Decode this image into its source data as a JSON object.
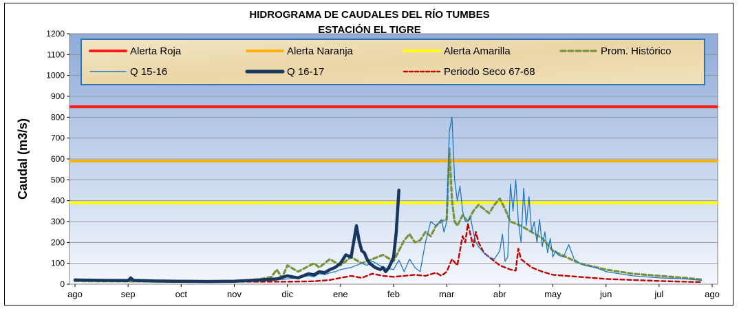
{
  "chart_data": {
    "type": "line",
    "title": "HIDROGRAMA DE CAUDALES  DEL RÍO TUMBES",
    "subtitle": "ESTACIÓN EL TIGRE",
    "ylabel": "Caudal (m3/s)",
    "xlabel": "",
    "ylim": [
      0,
      1200
    ],
    "yticks": [
      0,
      100,
      200,
      300,
      400,
      500,
      600,
      700,
      800,
      900,
      1000,
      1100,
      1200
    ],
    "xlim": [
      0,
      12
    ],
    "months": [
      "ago",
      "sep",
      "oct",
      "nov",
      "dic",
      "ene",
      "feb",
      "mar",
      "abr",
      "may",
      "jun",
      "jul",
      "ago"
    ],
    "grid": true,
    "legend_position": "top",
    "thresholds": [
      {
        "name": "Alerta Roja",
        "value": 850,
        "color": "#ff1a1a"
      },
      {
        "name": "Alerta Naranja",
        "value": 590,
        "color": "#ffb300"
      },
      {
        "name": "Alerta Amarilla",
        "value": 390,
        "color": "#ffff00"
      }
    ],
    "series": [
      {
        "name": "Prom. Histórico",
        "color": "#77933c",
        "style": "dashed",
        "x": [
          0,
          0.5,
          1,
          1.5,
          2,
          2.5,
          3,
          3.3,
          3.5,
          3.7,
          3.8,
          3.9,
          4.0,
          4.2,
          4.5,
          4.6,
          4.8,
          5.0,
          5.2,
          5.4,
          5.6,
          5.8,
          6.0,
          6.2,
          6.3,
          6.4,
          6.5,
          6.6,
          6.7,
          6.8,
          6.9,
          7.0,
          7.05,
          7.1,
          7.15,
          7.2,
          7.3,
          7.4,
          7.5,
          7.6,
          7.7,
          7.8,
          7.9,
          8.0,
          8.1,
          8.2,
          8.4,
          8.6,
          8.8,
          9.0,
          9.5,
          10,
          10.5,
          11,
          11.5,
          11.8
        ],
        "y": [
          15,
          14,
          14,
          13,
          13,
          12,
          14,
          20,
          25,
          35,
          70,
          30,
          90,
          60,
          100,
          80,
          120,
          90,
          130,
          100,
          120,
          140,
          110,
          210,
          240,
          200,
          210,
          250,
          230,
          280,
          300,
          310,
          650,
          400,
          300,
          280,
          330,
          300,
          350,
          380,
          360,
          340,
          380,
          410,
          360,
          300,
          280,
          250,
          220,
          160,
          100,
          70,
          50,
          40,
          30,
          22
        ]
      },
      {
        "name": "Q 15-16",
        "color": "#1f77c4",
        "style": "thin",
        "x": [
          0,
          1,
          2,
          3,
          3.5,
          3.8,
          4.0,
          4.2,
          4.4,
          4.5,
          4.6,
          4.7,
          4.8,
          4.9,
          5.0,
          5.2,
          5.4,
          5.5,
          5.6,
          5.8,
          6.0,
          6.1,
          6.2,
          6.3,
          6.4,
          6.5,
          6.6,
          6.7,
          6.8,
          6.9,
          6.95,
          7.0,
          7.05,
          7.1,
          7.15,
          7.2,
          7.25,
          7.3,
          7.35,
          7.4,
          7.45,
          7.5,
          7.55,
          7.6,
          7.7,
          7.8,
          7.9,
          8.0,
          8.05,
          8.1,
          8.15,
          8.2,
          8.25,
          8.3,
          8.35,
          8.4,
          8.45,
          8.5,
          8.55,
          8.6,
          8.65,
          8.7,
          8.75,
          8.8,
          8.85,
          8.9,
          8.95,
          9.0,
          9.05,
          9.1,
          9.2,
          9.3,
          9.4,
          9.5,
          9.6,
          9.8,
          10,
          10.5,
          11,
          11.5,
          11.8
        ],
        "y": [
          20,
          15,
          13,
          12,
          15,
          20,
          25,
          30,
          40,
          35,
          50,
          45,
          55,
          60,
          70,
          80,
          100,
          90,
          110,
          80,
          70,
          115,
          60,
          120,
          80,
          60,
          200,
          300,
          280,
          310,
          250,
          300,
          730,
          800,
          500,
          400,
          470,
          350,
          300,
          300,
          320,
          250,
          200,
          180,
          150,
          130,
          120,
          160,
          240,
          110,
          130,
          480,
          350,
          500,
          300,
          200,
          460,
          280,
          420,
          250,
          300,
          200,
          310,
          180,
          250,
          150,
          220,
          130,
          160,
          140,
          130,
          190,
          120,
          100,
          90,
          80,
          60,
          40,
          30,
          25,
          18
        ]
      },
      {
        "name": "Q 16-17",
        "color": "#17375e",
        "style": "thick",
        "x": [
          0,
          0.5,
          1,
          1.05,
          1.1,
          1.5,
          2,
          2.5,
          3,
          3.5,
          3.8,
          4.0,
          4.2,
          4.4,
          4.5,
          4.6,
          4.7,
          4.8,
          4.9,
          5.0,
          5.1,
          5.2,
          5.3,
          5.35,
          5.4,
          5.45,
          5.5,
          5.55,
          5.6,
          5.65,
          5.7,
          5.75,
          5.8,
          5.85,
          5.9,
          5.95,
          6.0,
          6.05,
          6.1
        ],
        "y": [
          20,
          18,
          17,
          30,
          18,
          15,
          14,
          13,
          14,
          20,
          25,
          40,
          30,
          50,
          45,
          60,
          55,
          70,
          80,
          100,
          140,
          130,
          280,
          210,
          160,
          150,
          120,
          100,
          90,
          80,
          75,
          70,
          80,
          60,
          75,
          100,
          130,
          250,
          450
        ]
      },
      {
        "name": "Periodo Seco 67-68",
        "color": "#c00000",
        "style": "dashed",
        "x": [
          0,
          1,
          2,
          3,
          4,
          4.5,
          4.8,
          5.0,
          5.2,
          5.4,
          5.6,
          5.8,
          6.0,
          6.2,
          6.4,
          6.6,
          6.8,
          6.9,
          7.0,
          7.1,
          7.2,
          7.3,
          7.35,
          7.4,
          7.5,
          7.55,
          7.6,
          7.7,
          7.8,
          7.9,
          8.0,
          8.1,
          8.2,
          8.3,
          8.35,
          8.4,
          8.5,
          8.6,
          8.8,
          9.0,
          9.5,
          10,
          10.5,
          11,
          11.5,
          11.8
        ],
        "y": [
          15,
          13,
          12,
          12,
          12,
          14,
          20,
          30,
          40,
          30,
          50,
          40,
          35,
          40,
          45,
          40,
          55,
          40,
          60,
          120,
          90,
          230,
          200,
          290,
          180,
          250,
          200,
          150,
          130,
          110,
          90,
          80,
          70,
          65,
          170,
          120,
          100,
          80,
          60,
          45,
          35,
          25,
          20,
          15,
          12,
          10
        ]
      }
    ]
  }
}
